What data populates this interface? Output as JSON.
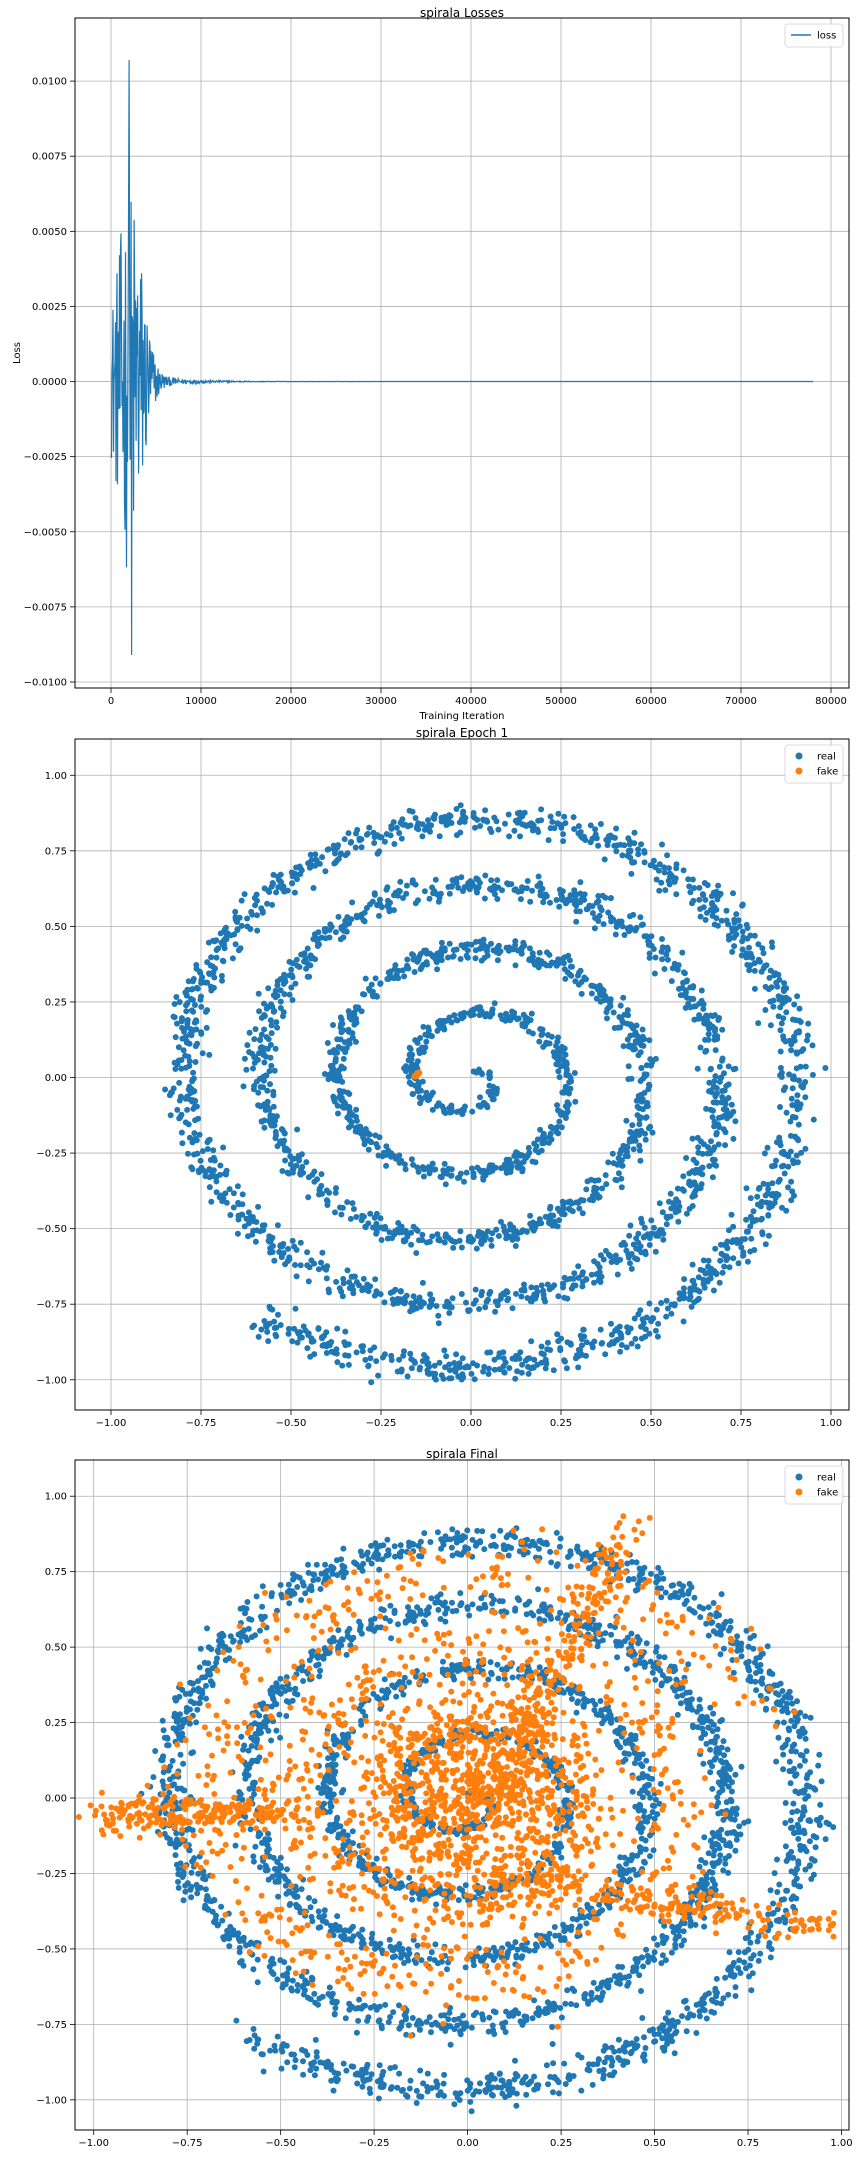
{
  "colors": {
    "real": "#1f77b4",
    "fake": "#ff7f0e",
    "loss": "#1f77b4",
    "grid": "#b0b0b0",
    "axis": "#000000"
  },
  "chart_data": [
    {
      "type": "line",
      "title": "spirala Losses",
      "xlabel": "Training Iteration",
      "ylabel": "Loss",
      "xlim": [
        -4000,
        82000
      ],
      "ylim": [
        -0.0102,
        0.0121
      ],
      "xticks": [
        0,
        10000,
        20000,
        30000,
        40000,
        50000,
        60000,
        70000,
        80000
      ],
      "xtick_labels": [
        "0",
        "10000",
        "20000",
        "30000",
        "40000",
        "50000",
        "60000",
        "70000",
        "80000"
      ],
      "yticks": [
        -0.01,
        -0.0075,
        -0.005,
        -0.0025,
        0,
        0.0025,
        0.005,
        0.0075,
        0.01
      ],
      "ytick_labels": [
        "−0.0100",
        "−0.0075",
        "−0.0050",
        "−0.0025",
        "0.0000",
        "0.0025",
        "0.0050",
        "0.0075",
        "0.0100"
      ],
      "grid": true,
      "legend": "top-right",
      "series": [
        {
          "name": "loss",
          "color": "#1f77b4",
          "x_max": 78000,
          "peaks": [
            {
              "x": 2000,
              "y_max": 0.0107
            },
            {
              "x": 2300,
              "y_min": -0.0091
            }
          ],
          "burst_end": 8000,
          "settled_value": 0.0
        }
      ]
    },
    {
      "type": "scatter",
      "title": "spirala Epoch 1",
      "xlim": [
        -1.1,
        1.05
      ],
      "ylim": [
        -1.1,
        1.12
      ],
      "xticks": [
        -1,
        -0.75,
        -0.5,
        -0.25,
        0,
        0.25,
        0.5,
        0.75,
        1
      ],
      "xtick_labels": [
        "−1.00",
        "−0.75",
        "−0.50",
        "−0.25",
        "0.00",
        "0.25",
        "0.50",
        "0.75",
        "1.00"
      ],
      "yticks": [
        -1,
        -0.75,
        -0.5,
        -0.25,
        0,
        0.25,
        0.5,
        0.75,
        1
      ],
      "ytick_labels": [
        "−1.00",
        "−0.75",
        "−0.50",
        "−0.25",
        "0.00",
        "0.25",
        "0.50",
        "0.75",
        "1.00"
      ],
      "grid": true,
      "legend": "top-right",
      "series": [
        {
          "name": "real",
          "color": "#1f77b4",
          "shape": "spiral",
          "turns": 4.6,
          "r_max": 0.98
        },
        {
          "name": "fake",
          "color": "#ff7f0e",
          "points": [
            [
              -0.15,
              0.01
            ],
            [
              -0.145,
              0.015
            ],
            [
              -0.155,
              0.005
            ],
            [
              -0.148,
              0.012
            ]
          ]
        }
      ]
    },
    {
      "type": "scatter",
      "title": "spirala Final",
      "xlim": [
        -1.05,
        1.02
      ],
      "ylim": [
        -1.1,
        1.12
      ],
      "xticks": [
        -1,
        -0.75,
        -0.5,
        -0.25,
        0,
        0.25,
        0.5,
        0.75,
        1
      ],
      "xtick_labels": [
        "−1.00",
        "−0.75",
        "−0.50",
        "−0.25",
        "0.00",
        "0.25",
        "0.50",
        "0.75",
        "1.00"
      ],
      "yticks": [
        -1,
        -0.75,
        -0.5,
        -0.25,
        0,
        0.25,
        0.5,
        0.75,
        1
      ],
      "ytick_labels": [
        "−1.00",
        "−0.75",
        "−0.50",
        "−0.25",
        "0.00",
        "0.25",
        "0.50",
        "0.75",
        "1.00"
      ],
      "grid": true,
      "legend": "top-right",
      "series": [
        {
          "name": "real",
          "color": "#1f77b4",
          "shape": "spiral",
          "turns": 4.6,
          "r_max": 0.98
        },
        {
          "name": "fake",
          "color": "#ff7f0e",
          "shape": "scattered-spiral",
          "features": [
            {
              "from": [
                0.05,
                0.0
              ],
              "to": [
                0.45,
                0.9
              ]
            },
            {
              "from": [
                0.05,
                -0.25
              ],
              "to": [
                0.95,
                -0.43
              ]
            },
            {
              "from": [
                -0.5,
                -0.05
              ],
              "to": [
                -0.97,
                -0.06
              ]
            }
          ]
        }
      ]
    }
  ]
}
